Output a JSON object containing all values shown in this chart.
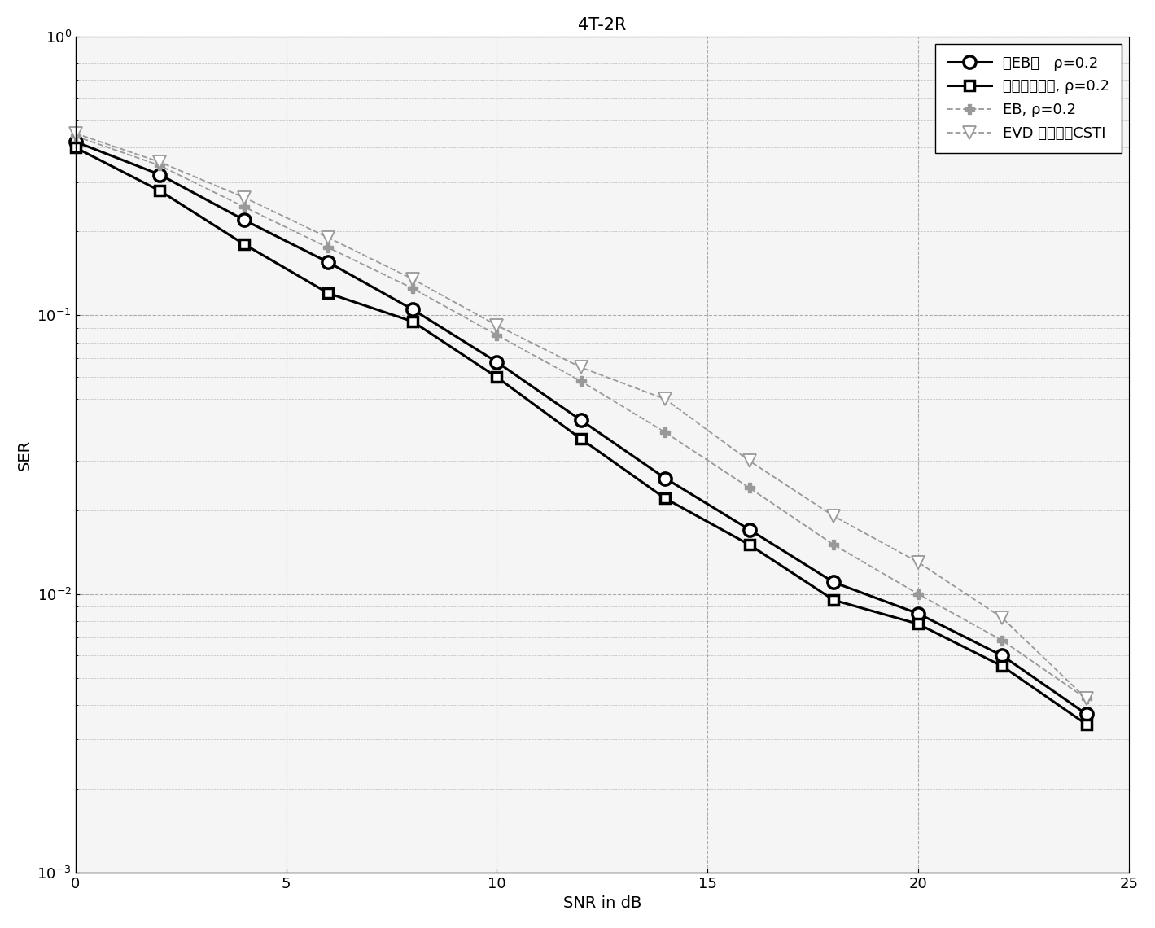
{
  "title": "4T-2R",
  "xlabel": "SNR in dB",
  "ylabel": "SER",
  "xlim": [
    0,
    25
  ],
  "ylim_log": [
    -3,
    0
  ],
  "snr": [
    0,
    2,
    4,
    6,
    8,
    10,
    12,
    14,
    16,
    18,
    20,
    22,
    24
  ],
  "series": [
    {
      "label": "伪EB，   ρ=0.2",
      "color": "#000000",
      "linewidth": 2.2,
      "linestyle": "-",
      "marker": "o",
      "markersize": 11,
      "markerfacecolor": "white",
      "markeredgecolor": "#000000",
      "markeredgewidth": 2.5,
      "values": [
        0.42,
        0.32,
        0.22,
        0.155,
        0.105,
        0.068,
        0.042,
        0.026,
        0.017,
        0.011,
        0.0085,
        0.006,
        0.0037
      ]
    },
    {
      "label": "本发明实施例, ρ=0.2",
      "color": "#000000",
      "linewidth": 2.2,
      "linestyle": "-",
      "marker": "s",
      "markersize": 9,
      "markerfacecolor": "white",
      "markeredgecolor": "#000000",
      "markeredgewidth": 2.5,
      "values": [
        0.4,
        0.28,
        0.18,
        0.12,
        0.095,
        0.06,
        0.036,
        0.022,
        0.015,
        0.0095,
        0.0078,
        0.0055,
        0.0034
      ]
    },
    {
      "label": "EB, ρ=0.2",
      "color": "#999999",
      "linewidth": 1.3,
      "linestyle": "--",
      "marker": "P",
      "markersize": 8,
      "markerfacecolor": "#999999",
      "markeredgecolor": "#999999",
      "markeredgewidth": 1.0,
      "values": [
        0.44,
        0.345,
        0.245,
        0.175,
        0.125,
        0.085,
        0.058,
        0.038,
        0.024,
        0.015,
        0.01,
        0.0068,
        0.0042
      ]
    },
    {
      "label": "EVD 具有单个CSTI",
      "color": "#999999",
      "linewidth": 1.3,
      "linestyle": "--",
      "marker": "v",
      "markersize": 11,
      "markerfacecolor": "white",
      "markeredgecolor": "#999999",
      "markeredgewidth": 1.3,
      "values": [
        0.45,
        0.355,
        0.265,
        0.19,
        0.135,
        0.092,
        0.065,
        0.05,
        0.03,
        0.019,
        0.013,
        0.0082,
        0.0042
      ]
    }
  ],
  "legend_loc": "upper right",
  "grid_color": "#999999",
  "background_color": "#f5f5f5",
  "title_fontsize": 15,
  "label_fontsize": 14,
  "tick_fontsize": 13,
  "legend_fontsize": 13
}
